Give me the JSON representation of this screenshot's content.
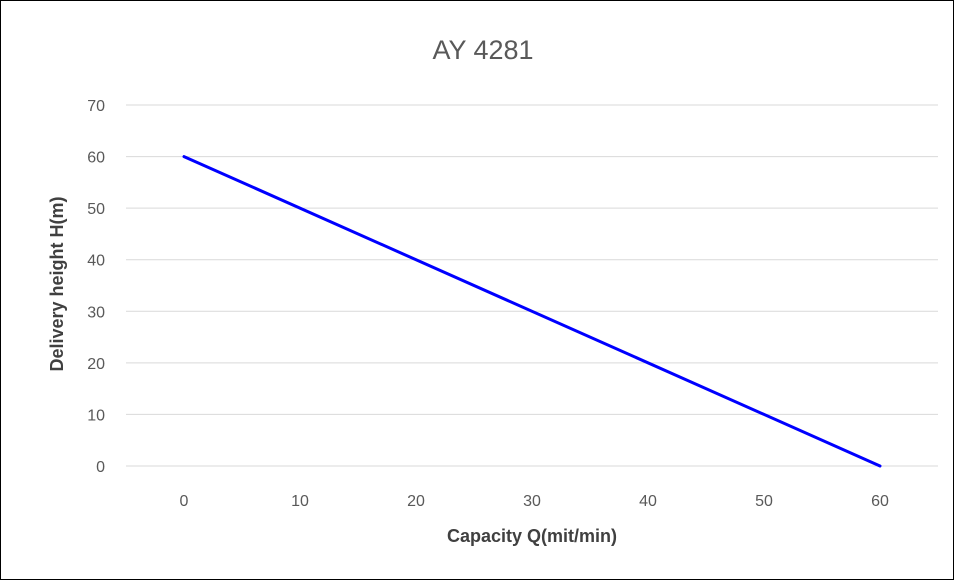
{
  "chart_data": {
    "type": "line",
    "title": "AY 4281",
    "xlabel": "Capacity Q(mit/min)",
    "ylabel": "Delivery height H(m)",
    "x_ticks": [
      "0",
      "10",
      "20",
      "30",
      "40",
      "50",
      "60"
    ],
    "y_ticks": [
      "0",
      "10",
      "20",
      "30",
      "40",
      "50",
      "60",
      "70"
    ],
    "xlim": [
      -5,
      65
    ],
    "ylim": [
      0,
      70
    ],
    "grid": true,
    "legend": "none",
    "series": [
      {
        "color": "#0000ff",
        "x": [
          0,
          60
        ],
        "y": [
          60,
          0
        ]
      }
    ]
  }
}
